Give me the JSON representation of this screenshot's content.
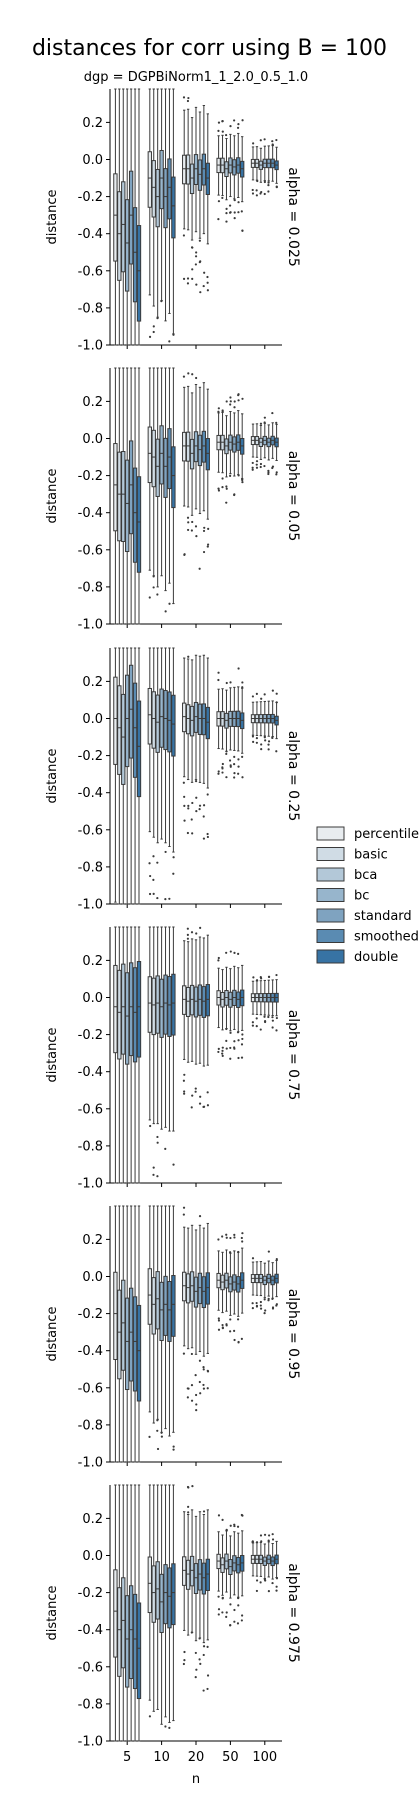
{
  "chart_data": {
    "type": "box",
    "title": "distances for corr using B = 100",
    "subtitle": "dgp = DGPBiNorm1_1_2.0_0.5_1.0",
    "xlabel": "n",
    "ylabel": "distance",
    "categories": [
      "5",
      "10",
      "20",
      "50",
      "100"
    ],
    "ylim": [
      -1.0,
      0.38
    ],
    "yticks": [
      "0.2",
      "0.0",
      "-0.2",
      "-0.4",
      "-0.6",
      "-0.8",
      "-1.0"
    ],
    "legend": {
      "placement": "right",
      "entries": [
        {
          "label": "percentile",
          "color": "#e8ecef"
        },
        {
          "label": "basic",
          "color": "#d0dce5"
        },
        {
          "label": "bca",
          "color": "#b3c8d8"
        },
        {
          "label": "bc",
          "color": "#97b5cc"
        },
        {
          "label": "standard",
          "color": "#7fa3c0"
        },
        {
          "label": "smoothed",
          "color": "#5a8bb2"
        },
        {
          "label": "double",
          "color": "#3773a4"
        }
      ]
    },
    "panels": [
      {
        "label": "alpha = 0.025",
        "medians": [
          [
            -0.3,
            -0.4,
            -0.35,
            -0.45,
            -0.3,
            -0.5,
            -0.6
          ],
          [
            -0.1,
            -0.15,
            -0.2,
            -0.1,
            -0.2,
            -0.15,
            -0.25
          ],
          [
            -0.05,
            -0.05,
            -0.1,
            -0.05,
            -0.08,
            -0.05,
            -0.1
          ],
          [
            -0.03,
            -0.03,
            -0.05,
            -0.03,
            -0.04,
            -0.03,
            -0.05
          ],
          [
            -0.02,
            -0.02,
            -0.03,
            -0.02,
            -0.02,
            -0.02,
            -0.03
          ]
        ]
      },
      {
        "label": "alpha = 0.05",
        "medians": [
          [
            -0.25,
            -0.3,
            -0.3,
            -0.35,
            -0.25,
            -0.4,
            -0.45
          ],
          [
            -0.08,
            -0.1,
            -0.15,
            -0.08,
            -0.15,
            -0.1,
            -0.2
          ],
          [
            -0.04,
            -0.04,
            -0.08,
            -0.04,
            -0.06,
            -0.04,
            -0.08
          ],
          [
            -0.02,
            -0.02,
            -0.04,
            -0.02,
            -0.03,
            -0.02,
            -0.04
          ],
          [
            -0.01,
            -0.01,
            -0.02,
            -0.01,
            -0.02,
            -0.01,
            -0.02
          ]
        ]
      },
      {
        "label": "alpha = 0.25",
        "medians": [
          [
            0.0,
            -0.05,
            -0.1,
            0.0,
            0.05,
            -0.05,
            -0.15
          ],
          [
            0.02,
            0.0,
            -0.02,
            0.01,
            0.0,
            -0.01,
            -0.03
          ],
          [
            0.01,
            0.0,
            -0.01,
            0.01,
            0.0,
            0.0,
            -0.02
          ],
          [
            0.0,
            0.0,
            -0.01,
            0.0,
            0.0,
            0.0,
            -0.01
          ],
          [
            0.0,
            0.0,
            0.0,
            0.0,
            0.0,
            0.0,
            -0.01
          ]
        ]
      },
      {
        "label": "alpha = 0.75",
        "medians": [
          [
            -0.05,
            -0.08,
            -0.05,
            -0.1,
            -0.05,
            -0.08,
            -0.05
          ],
          [
            -0.03,
            -0.04,
            -0.03,
            -0.05,
            -0.03,
            -0.04,
            -0.03
          ],
          [
            -0.01,
            -0.02,
            -0.01,
            -0.02,
            -0.01,
            -0.02,
            -0.01
          ],
          [
            0.0,
            -0.01,
            0.0,
            -0.01,
            0.0,
            -0.01,
            0.0
          ],
          [
            0.0,
            0.0,
            0.0,
            0.0,
            0.0,
            0.0,
            0.0
          ]
        ]
      },
      {
        "label": "alpha = 0.95",
        "medians": [
          [
            -0.2,
            -0.3,
            -0.25,
            -0.35,
            -0.3,
            -0.35,
            -0.4
          ],
          [
            -0.1,
            -0.15,
            -0.12,
            -0.18,
            -0.15,
            -0.18,
            -0.15
          ],
          [
            -0.05,
            -0.06,
            -0.05,
            -0.08,
            -0.06,
            -0.08,
            -0.06
          ],
          [
            -0.02,
            -0.03,
            -0.02,
            -0.04,
            -0.03,
            -0.04,
            -0.02
          ],
          [
            -0.01,
            -0.01,
            -0.01,
            -0.02,
            -0.01,
            -0.02,
            -0.01
          ]
        ]
      },
      {
        "label": "alpha = 0.975",
        "medians": [
          [
            -0.3,
            -0.4,
            -0.35,
            -0.45,
            -0.4,
            -0.45,
            -0.5
          ],
          [
            -0.15,
            -0.2,
            -0.18,
            -0.25,
            -0.2,
            -0.22,
            -0.2
          ],
          [
            -0.08,
            -0.1,
            -0.08,
            -0.12,
            -0.1,
            -0.12,
            -0.1
          ],
          [
            -0.03,
            -0.05,
            -0.03,
            -0.06,
            -0.04,
            -0.05,
            -0.04
          ],
          [
            -0.02,
            -0.02,
            -0.02,
            -0.03,
            -0.02,
            -0.03,
            -0.02
          ]
        ]
      }
    ]
  }
}
